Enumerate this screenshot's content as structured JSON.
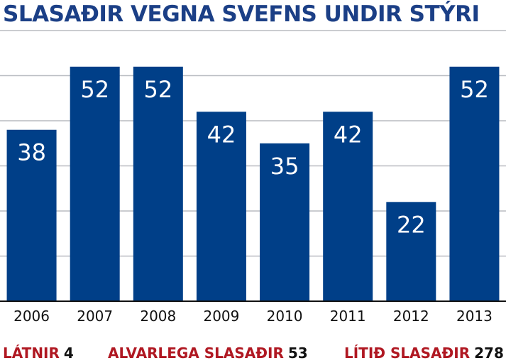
{
  "chart_data": {
    "type": "bar",
    "title": "SLASAÐIR VEGNA SVEFNS UNDIR STÝRI",
    "categories": [
      "2006",
      "2007",
      "2008",
      "2009",
      "2010",
      "2011",
      "2012",
      "2013"
    ],
    "values": [
      38,
      52,
      52,
      42,
      35,
      42,
      22,
      52
    ],
    "ylim": [
      0,
      63
    ],
    "grid": true,
    "bar_color": "#003f88",
    "grid_color": "#b9bcc1",
    "label_color": "#ffffff"
  },
  "summary": [
    {
      "label": "LÁTNIR",
      "value": "4"
    },
    {
      "label": "ALVARLEGA SLASAÐIR",
      "value": "53"
    },
    {
      "label": "LÍTIÐ SLASAÐIR",
      "value": "278"
    }
  ],
  "colors": {
    "title": "#1b3f86",
    "summary_label": "#b01822"
  }
}
